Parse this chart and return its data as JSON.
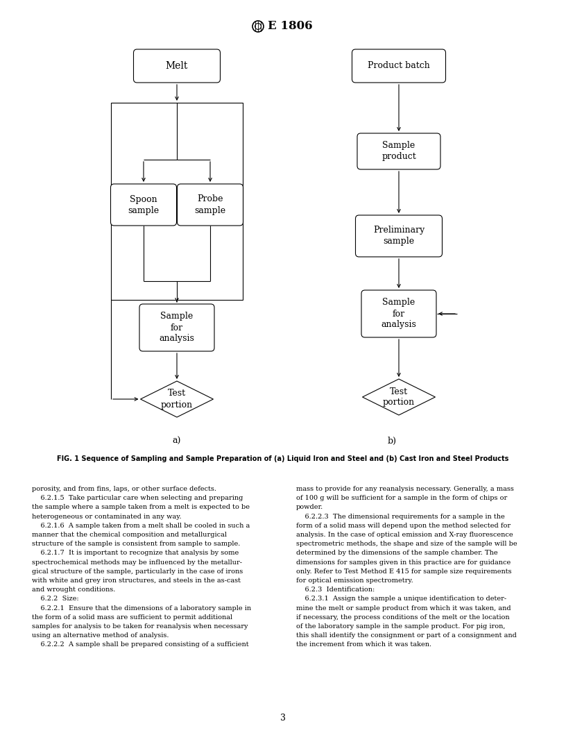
{
  "title": "E 1806",
  "fig_caption": "FIG. 1 Sequence of Sampling and Sample Preparation of (a) Liquid Iron and Steel and (b) Cast Iron and Steel Products",
  "label_a": "a)",
  "label_b": "b)",
  "bg_color": "#ffffff",
  "body_text_left": [
    "porosity, and from fins, laps, or other surface defects.",
    "    6.2.1.5  Take particular care when selecting and preparing",
    "the sample where a sample taken from a melt is expected to be",
    "heterogeneous or contaminated in any way.",
    "    6.2.1.6  A sample taken from a melt shall be cooled in such a",
    "manner that the chemical composition and metallurgical",
    "structure of the sample is consistent from sample to sample.",
    "    6.2.1.7  It is important to recognize that analysis by some",
    "spectrochemical methods may be influenced by the metallur-",
    "gical structure of the sample, particularly in the case of irons",
    "with white and grey iron structures, and steels in the as-cast",
    "and wrought conditions.",
    "    6.2.2  Size:",
    "    6.2.2.1  Ensure that the dimensions of a laboratory sample in",
    "the form of a solid mass are sufficient to permit additional",
    "samples for analysis to be taken for reanalysis when necessary",
    "using an alternative method of analysis.",
    "    6.2.2.2  A sample shall be prepared consisting of a sufficient"
  ],
  "body_text_right": [
    "mass to provide for any reanalysis necessary. Generally, a mass",
    "of 100 g will be sufficient for a sample in the form of chips or",
    "powder.",
    "    6.2.2.3  The dimensional requirements for a sample in the",
    "form of a solid mass will depend upon the method selected for",
    "analysis. In the case of optical emission and X-ray fluorescence",
    "spectrometric methods, the shape and size of the sample will be",
    "determined by the dimensions of the sample chamber. The",
    "dimensions for samples given in this practice are for guidance",
    "only. Refer to Test Method E 415 for sample size requirements",
    "for optical emission spectrometry.",
    "    6.2.3  Identification:",
    "    6.2.3.1  Assign the sample a unique identification to deter-",
    "mine the melt or sample product from which it was taken, and",
    "if necessary, the process conditions of the melt or the location",
    "of the laboratory sample in the sample product. For pig iron,",
    "this shall identify the consignment or part of a consignment and",
    "the increment from which it was taken."
  ],
  "page_number": "3"
}
